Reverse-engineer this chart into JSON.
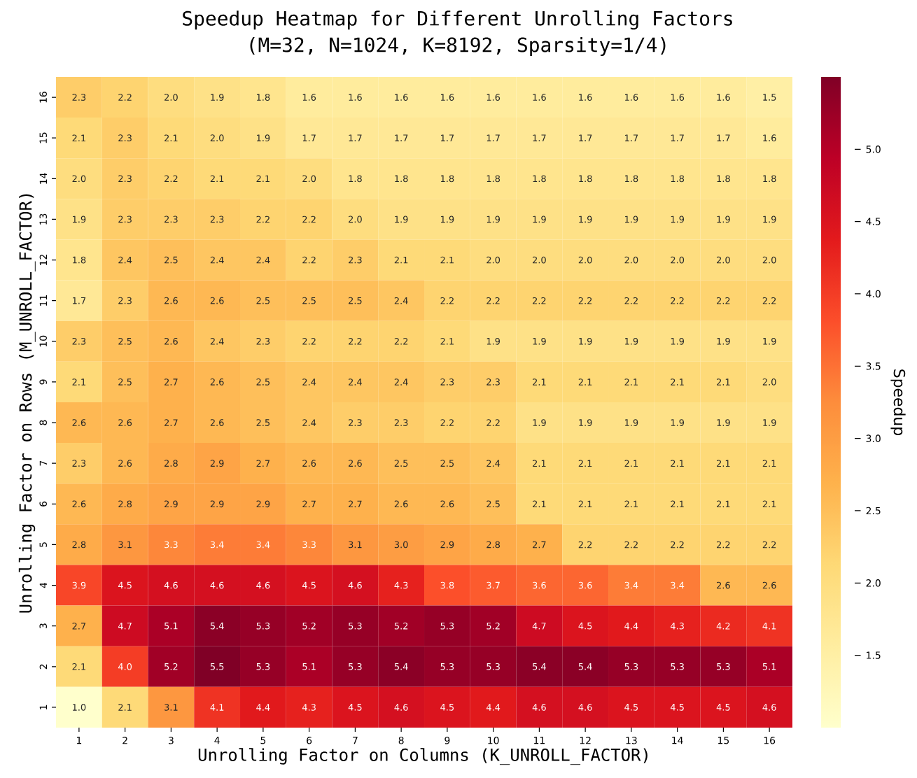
{
  "chart_data": {
    "type": "heatmap",
    "title": "Speedup Heatmap for Different Unrolling Factors",
    "subtitle": "(M=32, N=1024, K=8192, Sparsity=1/4)",
    "xlabel": "Unrolling Factor on Columns (K_UNROLL_FACTOR)",
    "ylabel": "Unrolling Factor on Rows (M_UNROLL_FACTOR)",
    "clabel": "Speedup",
    "categories": [
      "1",
      "2",
      "3",
      "4",
      "5",
      "6",
      "7",
      "8",
      "9",
      "10",
      "11",
      "12",
      "13",
      "14",
      "15",
      "16"
    ],
    "y_categories": [
      "16",
      "15",
      "14",
      "13",
      "12",
      "11",
      "10",
      "9",
      "8",
      "7",
      "6",
      "5",
      "4",
      "3",
      "2",
      "1"
    ],
    "cells": [
      [
        2.3,
        2.2,
        2.0,
        1.9,
        1.8,
        1.6,
        1.6,
        1.6,
        1.6,
        1.6,
        1.6,
        1.6,
        1.6,
        1.6,
        1.6,
        1.5
      ],
      [
        2.1,
        2.3,
        2.1,
        2.0,
        1.9,
        1.7,
        1.7,
        1.7,
        1.7,
        1.7,
        1.7,
        1.7,
        1.7,
        1.7,
        1.7,
        1.6
      ],
      [
        2.0,
        2.3,
        2.2,
        2.1,
        2.1,
        2.0,
        1.8,
        1.8,
        1.8,
        1.8,
        1.8,
        1.8,
        1.8,
        1.8,
        1.8,
        1.8
      ],
      [
        1.9,
        2.3,
        2.3,
        2.3,
        2.2,
        2.2,
        2.0,
        1.9,
        1.9,
        1.9,
        1.9,
        1.9,
        1.9,
        1.9,
        1.9,
        1.9
      ],
      [
        1.8,
        2.4,
        2.5,
        2.4,
        2.4,
        2.2,
        2.3,
        2.1,
        2.1,
        2.0,
        2.0,
        2.0,
        2.0,
        2.0,
        2.0,
        2.0
      ],
      [
        1.7,
        2.3,
        2.6,
        2.6,
        2.5,
        2.5,
        2.5,
        2.4,
        2.2,
        2.2,
        2.2,
        2.2,
        2.2,
        2.2,
        2.2,
        2.2
      ],
      [
        2.3,
        2.5,
        2.6,
        2.4,
        2.3,
        2.2,
        2.2,
        2.2,
        2.1,
        1.9,
        1.9,
        1.9,
        1.9,
        1.9,
        1.9,
        1.9
      ],
      [
        2.1,
        2.5,
        2.7,
        2.6,
        2.5,
        2.4,
        2.4,
        2.4,
        2.3,
        2.3,
        2.1,
        2.1,
        2.1,
        2.1,
        2.1,
        2.0
      ],
      [
        2.6,
        2.6,
        2.7,
        2.6,
        2.5,
        2.4,
        2.3,
        2.3,
        2.2,
        2.2,
        1.9,
        1.9,
        1.9,
        1.9,
        1.9,
        1.9
      ],
      [
        2.3,
        2.6,
        2.8,
        2.9,
        2.7,
        2.6,
        2.6,
        2.5,
        2.5,
        2.4,
        2.1,
        2.1,
        2.1,
        2.1,
        2.1,
        2.1
      ],
      [
        2.6,
        2.8,
        2.9,
        2.9,
        2.9,
        2.7,
        2.7,
        2.6,
        2.6,
        2.5,
        2.1,
        2.1,
        2.1,
        2.1,
        2.1,
        2.1
      ],
      [
        2.8,
        3.1,
        3.3,
        3.4,
        3.4,
        3.3,
        3.1,
        3.0,
        2.9,
        2.8,
        2.7,
        2.2,
        2.2,
        2.2,
        2.2,
        2.2
      ],
      [
        3.9,
        4.5,
        4.6,
        4.6,
        4.6,
        4.5,
        4.6,
        4.3,
        3.8,
        3.7,
        3.6,
        3.6,
        3.4,
        3.4,
        2.6,
        2.6
      ],
      [
        2.7,
        4.7,
        5.1,
        5.4,
        5.3,
        5.2,
        5.3,
        5.2,
        5.3,
        5.2,
        4.7,
        4.5,
        4.4,
        4.3,
        4.2,
        4.1
      ],
      [
        2.1,
        4.0,
        5.2,
        5.5,
        5.3,
        5.1,
        5.3,
        5.4,
        5.3,
        5.3,
        5.4,
        5.4,
        5.3,
        5.3,
        5.3,
        5.1
      ],
      [
        1.0,
        2.1,
        3.1,
        4.1,
        4.4,
        4.3,
        4.5,
        4.6,
        4.5,
        4.4,
        4.6,
        4.6,
        4.5,
        4.5,
        4.5,
        4.6
      ]
    ],
    "cell_labels": [
      [
        "2.3",
        "2.2",
        "2.0",
        "1.9",
        "1.8",
        "1.6",
        "1.6",
        "1.6",
        "1.6",
        "1.6",
        "1.6",
        "1.6",
        "1.6",
        "1.6",
        "1.6",
        "1.5"
      ],
      [
        "2.1",
        "2.3",
        "2.1",
        "2.0",
        "1.9",
        "1.7",
        "1.7",
        "1.7",
        "1.7",
        "1.7",
        "1.7",
        "1.7",
        "1.7",
        "1.7",
        "1.7",
        "1.6"
      ],
      [
        "2.0",
        "2.3",
        "2.2",
        "2.1",
        "2.1",
        "2.0",
        "1.8",
        "1.8",
        "1.8",
        "1.8",
        "1.8",
        "1.8",
        "1.8",
        "1.8",
        "1.8",
        "1.8"
      ],
      [
        "1.9",
        "2.3",
        "2.3",
        "2.3",
        "2.2",
        "2.2",
        "2.0",
        "1.9",
        "1.9",
        "1.9",
        "1.9",
        "1.9",
        "1.9",
        "1.9",
        "1.9",
        "1.9"
      ],
      [
        "1.8",
        "2.4",
        "2.5",
        "2.4",
        "2.4",
        "2.2",
        "2.3",
        "2.1",
        "2.1",
        "2.0",
        "2.0",
        "2.0",
        "2.0",
        "2.0",
        "2.0",
        "2.0"
      ],
      [
        "1.7",
        "2.3",
        "2.6",
        "2.6",
        "2.5",
        "2.5",
        "2.5",
        "2.4",
        "2.2",
        "2.2",
        "2.2",
        "2.2",
        "2.2",
        "2.2",
        "2.2",
        "2.2"
      ],
      [
        "2.3",
        "2.5",
        "2.6",
        "2.4",
        "2.3",
        "2.2",
        "2.2",
        "2.2",
        "2.1",
        "1.9",
        "1.9",
        "1.9",
        "1.9",
        "1.9",
        "1.9",
        "1.9"
      ],
      [
        "2.1",
        "2.5",
        "2.7",
        "2.6",
        "2.5",
        "2.4",
        "2.4",
        "2.4",
        "2.3",
        "2.3",
        "2.1",
        "2.1",
        "2.1",
        "2.1",
        "2.1",
        "2.0"
      ],
      [
        "2.6",
        "2.6",
        "2.7",
        "2.6",
        "2.5",
        "2.4",
        "2.3",
        "2.3",
        "2.2",
        "2.2",
        "1.9",
        "1.9",
        "1.9",
        "1.9",
        "1.9",
        "1.9"
      ],
      [
        "2.3",
        "2.6",
        "2.8",
        "2.9",
        "2.7",
        "2.6",
        "2.6",
        "2.5",
        "2.5",
        "2.4",
        "2.1",
        "2.1",
        "2.1",
        "2.1",
        "2.1",
        "2.1"
      ],
      [
        "2.6",
        "2.8",
        "2.9",
        "2.9",
        "2.9",
        "2.7",
        "2.7",
        "2.6",
        "2.6",
        "2.5",
        "2.1",
        "2.1",
        "2.1",
        "2.1",
        "2.1",
        "2.1"
      ],
      [
        "2.8",
        "3.1",
        "3.3",
        "3.4",
        "3.4",
        "3.3",
        "3.1",
        "3.0",
        "2.9",
        "2.8",
        "2.7",
        "2.2",
        "2.2",
        "2.2",
        "2.2",
        "2.2"
      ],
      [
        "3.9",
        "4.5",
        "4.6",
        "4.6",
        "4.6",
        "4.5",
        "4.6",
        "4.3",
        "3.8",
        "3.7",
        "3.6",
        "3.6",
        "3.4",
        "3.4",
        "2.6",
        "2.6"
      ],
      [
        "2.7",
        "4.7",
        "5.1",
        "5.4",
        "5.3",
        "5.2",
        "5.3",
        "5.2",
        "5.3",
        "5.2",
        "4.7",
        "4.5",
        "4.4",
        "4.3",
        "4.2",
        "4.1"
      ],
      [
        "2.1",
        "4.0",
        "5.2",
        "5.5",
        "5.3",
        "5.1",
        "5.3",
        "5.4",
        "5.3",
        "5.3",
        "5.4",
        "5.4",
        "5.3",
        "5.3",
        "5.3",
        "5.1"
      ],
      [
        "1.0",
        "2.1",
        "3.1",
        "4.1",
        "4.4",
        "4.3",
        "4.5",
        "4.6",
        "4.5",
        "4.4",
        "4.6",
        "4.6",
        "4.5",
        "4.5",
        "4.5",
        "4.6"
      ]
    ],
    "data_labels": true,
    "clim": [
      1.0,
      5.5
    ],
    "cticks": [
      1.5,
      {
        "value": 2,
        "label": "2.0"
      },
      2.5,
      {
        "value": 3,
        "label": "3.0"
      },
      3.5,
      {
        "value": 4,
        "label": "4.0"
      },
      4.5,
      {
        "value": 5,
        "label": "5.0"
      }
    ]
  }
}
